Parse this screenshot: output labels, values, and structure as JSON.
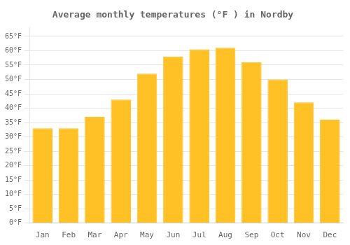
{
  "chart_data": {
    "type": "bar",
    "title": "Average monthly temperatures (°F ) in Nordby",
    "categories": [
      "Jan",
      "Feb",
      "Mar",
      "Apr",
      "May",
      "Jun",
      "Jul",
      "Aug",
      "Sep",
      "Oct",
      "Nov",
      "Dec"
    ],
    "values": [
      33,
      33,
      37,
      43,
      52,
      58,
      60.5,
      61,
      56,
      50,
      42,
      36
    ],
    "color": "#FFC125",
    "ylim": [
      0,
      68
    ],
    "yticks": [
      {
        "value": 0,
        "label": "0°F"
      },
      {
        "value": 5,
        "label": "5°F"
      },
      {
        "value": 10,
        "label": "10°F"
      },
      {
        "value": 15,
        "label": "15°F"
      },
      {
        "value": 20,
        "label": "20°F"
      },
      {
        "value": 25,
        "label": "25°F"
      },
      {
        "value": 30,
        "label": "30°F"
      },
      {
        "value": 35,
        "label": "35°F"
      },
      {
        "value": 40,
        "label": "40°F"
      },
      {
        "value": 45,
        "label": "45°F"
      },
      {
        "value": 50,
        "label": "50°F"
      },
      {
        "value": 55,
        "label": "55°F"
      },
      {
        "value": 60,
        "label": "60°F"
      },
      {
        "value": 65,
        "label": "65°F"
      }
    ],
    "grid": true
  }
}
